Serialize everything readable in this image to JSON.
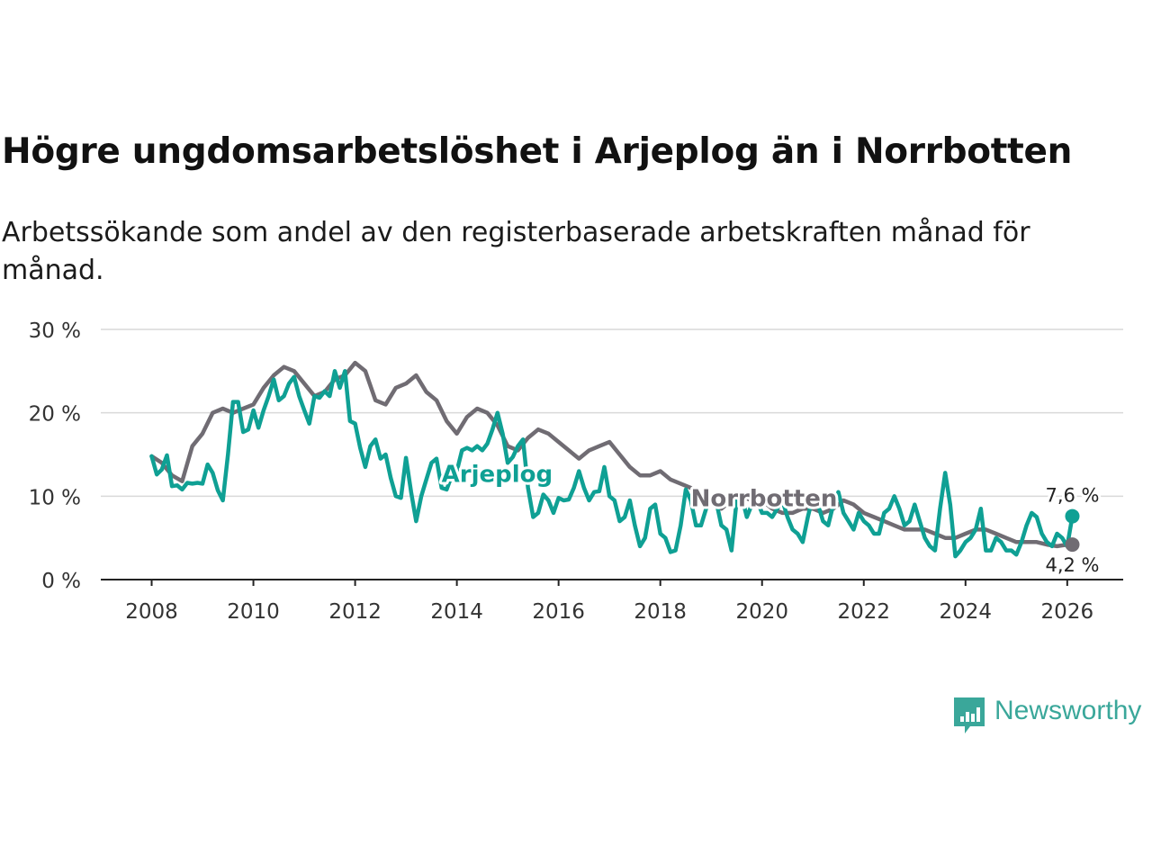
{
  "title": "Högre ungdomsarbetslöshet i Arjeplog än i Norrbotten",
  "subtitle": "Arbetssökande som andel av den registerbaserade arbetskraften månad för månad.",
  "brand": {
    "name": "Newsworthy",
    "color": "#3aa79a"
  },
  "chart_data": {
    "type": "line",
    "title": "Högre ungdomsarbetslöshet i Arjeplog än i Norrbotten",
    "xlabel": "",
    "ylabel": "",
    "xlim": [
      2007.0,
      2027.1
    ],
    "ylim": [
      0,
      30
    ],
    "x_ticks": [
      2008,
      2010,
      2012,
      2014,
      2016,
      2018,
      2020,
      2022,
      2024,
      2026
    ],
    "y_ticks": [
      0,
      10,
      20,
      30
    ],
    "y_tick_labels": [
      "0 %",
      "10 %",
      "20 %",
      "30 %"
    ],
    "grid": true,
    "series": [
      {
        "name": "Arjeplog",
        "label": "Arjeplog",
        "color": "#0fa094",
        "end_label": "7,6 %",
        "points": [
          [
            2008.0,
            14.8
          ],
          [
            2008.1,
            12.6
          ],
          [
            2008.2,
            13.2
          ],
          [
            2008.3,
            14.9
          ],
          [
            2008.4,
            11.2
          ],
          [
            2008.5,
            11.3
          ],
          [
            2008.6,
            10.8
          ],
          [
            2008.7,
            11.6
          ],
          [
            2008.8,
            11.5
          ],
          [
            2008.9,
            11.6
          ],
          [
            2009.0,
            11.5
          ],
          [
            2009.1,
            13.8
          ],
          [
            2009.2,
            12.8
          ],
          [
            2009.3,
            10.7
          ],
          [
            2009.4,
            9.5
          ],
          [
            2009.5,
            15.0
          ],
          [
            2009.6,
            21.3
          ],
          [
            2009.7,
            21.3
          ],
          [
            2009.8,
            17.7
          ],
          [
            2009.9,
            18.0
          ],
          [
            2010.0,
            20.3
          ],
          [
            2010.1,
            18.2
          ],
          [
            2010.2,
            20.3
          ],
          [
            2010.3,
            22.0
          ],
          [
            2010.4,
            24.0
          ],
          [
            2010.5,
            21.5
          ],
          [
            2010.6,
            22.0
          ],
          [
            2010.7,
            23.5
          ],
          [
            2010.8,
            24.3
          ],
          [
            2010.9,
            22.0
          ],
          [
            2011.0,
            20.3
          ],
          [
            2011.1,
            18.7
          ],
          [
            2011.2,
            22.0
          ],
          [
            2011.3,
            21.8
          ],
          [
            2011.4,
            22.6
          ],
          [
            2011.5,
            22.0
          ],
          [
            2011.6,
            25.0
          ],
          [
            2011.7,
            23.0
          ],
          [
            2011.8,
            25.0
          ],
          [
            2011.9,
            19.0
          ],
          [
            2012.0,
            18.7
          ],
          [
            2012.1,
            15.8
          ],
          [
            2012.2,
            13.5
          ],
          [
            2012.3,
            16.0
          ],
          [
            2012.4,
            16.8
          ],
          [
            2012.5,
            14.5
          ],
          [
            2012.6,
            15.0
          ],
          [
            2012.7,
            12.2
          ],
          [
            2012.8,
            10.0
          ],
          [
            2012.9,
            9.8
          ],
          [
            2013.0,
            14.6
          ],
          [
            2013.1,
            10.5
          ],
          [
            2013.2,
            7.0
          ],
          [
            2013.3,
            10.0
          ],
          [
            2013.4,
            12.0
          ],
          [
            2013.5,
            14.0
          ],
          [
            2013.6,
            14.5
          ],
          [
            2013.7,
            11.0
          ],
          [
            2013.8,
            10.8
          ],
          [
            2013.9,
            12.5
          ],
          [
            2014.0,
            13.0
          ],
          [
            2014.1,
            15.5
          ],
          [
            2014.2,
            15.8
          ],
          [
            2014.3,
            15.5
          ],
          [
            2014.4,
            16.0
          ],
          [
            2014.5,
            15.5
          ],
          [
            2014.6,
            16.3
          ],
          [
            2014.7,
            18.0
          ],
          [
            2014.8,
            20.0
          ],
          [
            2014.9,
            17.5
          ],
          [
            2015.0,
            14.0
          ],
          [
            2015.1,
            14.7
          ],
          [
            2015.2,
            16.0
          ],
          [
            2015.3,
            16.8
          ],
          [
            2015.4,
            11.0
          ],
          [
            2015.5,
            7.5
          ],
          [
            2015.6,
            8.0
          ],
          [
            2015.7,
            10.2
          ],
          [
            2015.8,
            9.5
          ],
          [
            2015.9,
            8.0
          ],
          [
            2016.0,
            9.8
          ],
          [
            2016.1,
            9.5
          ],
          [
            2016.2,
            9.6
          ],
          [
            2016.3,
            11.0
          ],
          [
            2016.4,
            13.0
          ],
          [
            2016.5,
            11.0
          ],
          [
            2016.6,
            9.5
          ],
          [
            2016.7,
            10.5
          ],
          [
            2016.8,
            10.6
          ],
          [
            2016.9,
            13.5
          ],
          [
            2017.0,
            10.0
          ],
          [
            2017.1,
            9.5
          ],
          [
            2017.2,
            7.0
          ],
          [
            2017.3,
            7.5
          ],
          [
            2017.4,
            9.5
          ],
          [
            2017.5,
            6.5
          ],
          [
            2017.6,
            4.0
          ],
          [
            2017.7,
            5.0
          ],
          [
            2017.8,
            8.5
          ],
          [
            2017.9,
            9.0
          ],
          [
            2018.0,
            5.5
          ],
          [
            2018.1,
            5.0
          ],
          [
            2018.2,
            3.3
          ],
          [
            2018.3,
            3.5
          ],
          [
            2018.4,
            6.5
          ],
          [
            2018.5,
            10.8
          ],
          [
            2018.6,
            9.5
          ],
          [
            2018.7,
            6.5
          ],
          [
            2018.8,
            6.5
          ],
          [
            2018.9,
            8.5
          ],
          [
            2019.0,
            9.5
          ],
          [
            2019.1,
            9.3
          ],
          [
            2019.2,
            6.5
          ],
          [
            2019.3,
            6.0
          ],
          [
            2019.4,
            3.5
          ],
          [
            2019.5,
            9.5
          ],
          [
            2019.6,
            10.0
          ],
          [
            2019.7,
            7.5
          ],
          [
            2019.8,
            9.0
          ],
          [
            2019.9,
            9.5
          ],
          [
            2020.0,
            8.0
          ],
          [
            2020.1,
            8.0
          ],
          [
            2020.2,
            7.5
          ],
          [
            2020.3,
            8.5
          ],
          [
            2020.4,
            9.5
          ],
          [
            2020.5,
            7.5
          ],
          [
            2020.6,
            6.0
          ],
          [
            2020.7,
            5.5
          ],
          [
            2020.8,
            4.5
          ],
          [
            2020.9,
            7.5
          ],
          [
            2021.0,
            10.0
          ],
          [
            2021.1,
            9.0
          ],
          [
            2021.2,
            7.0
          ],
          [
            2021.3,
            6.5
          ],
          [
            2021.4,
            9.0
          ],
          [
            2021.5,
            10.5
          ],
          [
            2021.6,
            8.0
          ],
          [
            2021.7,
            7.0
          ],
          [
            2021.8,
            6.0
          ],
          [
            2021.9,
            8.0
          ],
          [
            2022.0,
            7.0
          ],
          [
            2022.1,
            6.5
          ],
          [
            2022.2,
            5.5
          ],
          [
            2022.3,
            5.5
          ],
          [
            2022.4,
            8.0
          ],
          [
            2022.5,
            8.5
          ],
          [
            2022.6,
            10.0
          ],
          [
            2022.7,
            8.5
          ],
          [
            2022.8,
            6.5
          ],
          [
            2022.9,
            7.0
          ],
          [
            2023.0,
            9.0
          ],
          [
            2023.1,
            7.0
          ],
          [
            2023.2,
            5.0
          ],
          [
            2023.3,
            4.0
          ],
          [
            2023.4,
            3.5
          ],
          [
            2023.5,
            8.5
          ],
          [
            2023.6,
            12.8
          ],
          [
            2023.7,
            9.0
          ],
          [
            2023.8,
            2.8
          ],
          [
            2023.9,
            3.5
          ],
          [
            2024.0,
            4.5
          ],
          [
            2024.1,
            5.0
          ],
          [
            2024.2,
            6.0
          ],
          [
            2024.3,
            8.5
          ],
          [
            2024.4,
            3.5
          ],
          [
            2024.5,
            3.5
          ],
          [
            2024.6,
            5.0
          ],
          [
            2024.7,
            4.5
          ],
          [
            2024.8,
            3.5
          ],
          [
            2024.9,
            3.5
          ],
          [
            2025.0,
            3.0
          ],
          [
            2025.1,
            4.5
          ],
          [
            2025.2,
            6.5
          ],
          [
            2025.3,
            8.0
          ],
          [
            2025.4,
            7.5
          ],
          [
            2025.5,
            5.5
          ],
          [
            2025.6,
            4.5
          ],
          [
            2025.7,
            4.0
          ],
          [
            2025.8,
            5.5
          ],
          [
            2025.9,
            5.0
          ],
          [
            2026.0,
            4.0
          ],
          [
            2026.1,
            7.6
          ]
        ]
      },
      {
        "name": "Norrbotten",
        "label": "Norrbotten",
        "color": "#706c73",
        "end_label": "4,2 %",
        "points": [
          [
            2008.0,
            14.8
          ],
          [
            2008.2,
            14.0
          ],
          [
            2008.4,
            12.5
          ],
          [
            2008.6,
            11.8
          ],
          [
            2008.8,
            16.0
          ],
          [
            2009.0,
            17.5
          ],
          [
            2009.2,
            20.0
          ],
          [
            2009.4,
            20.5
          ],
          [
            2009.6,
            20.0
          ],
          [
            2009.8,
            20.5
          ],
          [
            2010.0,
            21.0
          ],
          [
            2010.2,
            23.0
          ],
          [
            2010.4,
            24.5
          ],
          [
            2010.6,
            25.5
          ],
          [
            2010.8,
            25.0
          ],
          [
            2011.0,
            23.5
          ],
          [
            2011.2,
            22.0
          ],
          [
            2011.4,
            22.5
          ],
          [
            2011.6,
            24.0
          ],
          [
            2011.8,
            24.5
          ],
          [
            2012.0,
            26.0
          ],
          [
            2012.2,
            25.0
          ],
          [
            2012.4,
            21.5
          ],
          [
            2012.6,
            21.0
          ],
          [
            2012.8,
            23.0
          ],
          [
            2013.0,
            23.5
          ],
          [
            2013.2,
            24.5
          ],
          [
            2013.4,
            22.5
          ],
          [
            2013.6,
            21.5
          ],
          [
            2013.8,
            19.0
          ],
          [
            2014.0,
            17.5
          ],
          [
            2014.2,
            19.5
          ],
          [
            2014.4,
            20.5
          ],
          [
            2014.6,
            20.0
          ],
          [
            2014.8,
            18.5
          ],
          [
            2015.0,
            16.0
          ],
          [
            2015.2,
            15.5
          ],
          [
            2015.4,
            17.0
          ],
          [
            2015.6,
            18.0
          ],
          [
            2015.8,
            17.5
          ],
          [
            2016.0,
            16.5
          ],
          [
            2016.2,
            15.5
          ],
          [
            2016.4,
            14.5
          ],
          [
            2016.6,
            15.5
          ],
          [
            2016.8,
            16.0
          ],
          [
            2017.0,
            16.5
          ],
          [
            2017.2,
            15.0
          ],
          [
            2017.4,
            13.5
          ],
          [
            2017.6,
            12.5
          ],
          [
            2017.8,
            12.5
          ],
          [
            2018.0,
            13.0
          ],
          [
            2018.2,
            12.0
          ],
          [
            2018.4,
            11.5
          ],
          [
            2018.6,
            11.0
          ],
          [
            2018.8,
            10.0
          ],
          [
            2019.0,
            9.5
          ],
          [
            2019.2,
            8.5
          ],
          [
            2019.4,
            9.5
          ],
          [
            2019.6,
            10.0
          ],
          [
            2019.8,
            9.5
          ],
          [
            2020.0,
            9.5
          ],
          [
            2020.2,
            8.5
          ],
          [
            2020.4,
            8.0
          ],
          [
            2020.6,
            8.0
          ],
          [
            2020.8,
            8.5
          ],
          [
            2021.0,
            8.5
          ],
          [
            2021.2,
            8.0
          ],
          [
            2021.4,
            8.5
          ],
          [
            2021.6,
            9.5
          ],
          [
            2021.8,
            9.0
          ],
          [
            2022.0,
            8.0
          ],
          [
            2022.2,
            7.5
          ],
          [
            2022.4,
            7.0
          ],
          [
            2022.6,
            6.5
          ],
          [
            2022.8,
            6.0
          ],
          [
            2023.0,
            6.0
          ],
          [
            2023.2,
            6.0
          ],
          [
            2023.4,
            5.5
          ],
          [
            2023.6,
            5.0
          ],
          [
            2023.8,
            5.0
          ],
          [
            2024.0,
            5.5
          ],
          [
            2024.2,
            6.0
          ],
          [
            2024.4,
            6.0
          ],
          [
            2024.6,
            5.5
          ],
          [
            2024.8,
            5.0
          ],
          [
            2025.0,
            4.5
          ],
          [
            2025.2,
            4.5
          ],
          [
            2025.4,
            4.5
          ],
          [
            2025.6,
            4.2
          ],
          [
            2025.8,
            4.0
          ],
          [
            2026.0,
            4.2
          ],
          [
            2026.1,
            4.2
          ]
        ]
      }
    ]
  }
}
